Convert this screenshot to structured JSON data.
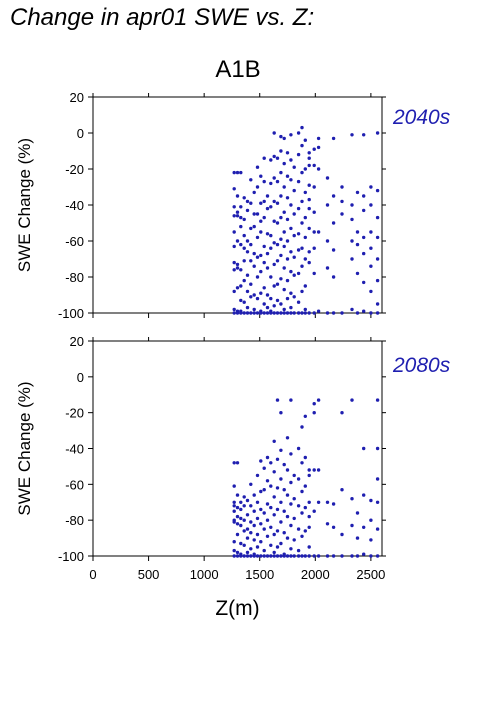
{
  "title": "Change in apr01 SWE vs. Z:",
  "scenario": "A1B",
  "colors": {
    "points": "#1f1fb0",
    "period_label": "#1f1fb0",
    "axis": "#000000"
  },
  "chart_data": [
    {
      "type": "scatter",
      "period": "2040s",
      "ylabel": "SWE Change (%)",
      "xlabel": "",
      "xlim": [
        0,
        2600
      ],
      "ylim": [
        -100,
        20
      ],
      "xticks": [
        0,
        500,
        1000,
        1500,
        2000,
        2500
      ],
      "yticks": [
        20,
        0,
        -20,
        -40,
        -60,
        -80,
        -100
      ],
      "xtick_labels_shown": false,
      "series": [
        {
          "columns": [
            {
              "x": 1270,
              "y": [
                -22,
                -31,
                -41,
                -46,
                -55,
                -63,
                -72,
                -76,
                -88,
                -98,
                -100
              ]
            },
            {
              "x": 1300,
              "y": [
                -22,
                -35,
                -44,
                -46,
                -60,
                -73,
                -75,
                -86,
                -99,
                -100
              ]
            },
            {
              "x": 1330,
              "y": [
                -22,
                -41,
                -47,
                -52,
                -62,
                -76,
                -85,
                -93,
                -99,
                -100
              ]
            },
            {
              "x": 1360,
              "y": [
                -36,
                -48,
                -57,
                -64,
                -71,
                -82,
                -94,
                -100
              ]
            },
            {
              "x": 1390,
              "y": [
                -38,
                -43,
                -60,
                -66,
                -79,
                -88,
                -97,
                -100
              ]
            },
            {
              "x": 1420,
              "y": [
                -26,
                -39,
                -53,
                -62,
                -71,
                -84,
                -91,
                -100
              ]
            },
            {
              "x": 1450,
              "y": [
                -33,
                -45,
                -52,
                -67,
                -74,
                -90,
                -98,
                -100
              ]
            },
            {
              "x": 1480,
              "y": [
                -19,
                -30,
                -45,
                -58,
                -69,
                -80,
                -92,
                -100
              ]
            },
            {
              "x": 1510,
              "y": [
                -24,
                -39,
                -49,
                -55,
                -68,
                -77,
                -89,
                -99,
                -100
              ]
            },
            {
              "x": 1540,
              "y": [
                -14,
                -27,
                -38,
                -47,
                -63,
                -72,
                -86,
                -95,
                -100
              ]
            },
            {
              "x": 1570,
              "y": [
                -35,
                -42,
                -56,
                -67,
                -75,
                -90,
                -97,
                -100
              ]
            },
            {
              "x": 1600,
              "y": [
                -15,
                -28,
                -41,
                -57,
                -64,
                -80,
                -92,
                -99,
                -100
              ]
            },
            {
              "x": 1630,
              "y": [
                0,
                -13,
                -25,
                -38,
                -49,
                -61,
                -73,
                -85,
                -96,
                -100
              ]
            },
            {
              "x": 1660,
              "y": [
                -14,
                -27,
                -39,
                -50,
                -62,
                -71,
                -84,
                -93,
                -100
              ]
            },
            {
              "x": 1690,
              "y": [
                -2,
                -10,
                -22,
                -35,
                -47,
                -59,
                -68,
                -81,
                -95,
                -100
              ]
            },
            {
              "x": 1720,
              "y": [
                -3,
                -17,
                -30,
                -44,
                -55,
                -63,
                -75,
                -87,
                -98,
                -100
              ]
            },
            {
              "x": 1750,
              "y": [
                -11,
                -24,
                -36,
                -48,
                -60,
                -70,
                -82,
                -92,
                -100
              ]
            },
            {
              "x": 1780,
              "y": [
                -1,
                -15,
                -26,
                -40,
                -53,
                -66,
                -77,
                -89,
                -97,
                -100
              ]
            },
            {
              "x": 1810,
              "y": [
                -19,
                -32,
                -45,
                -57,
                -69,
                -79,
                -91,
                -100
              ]
            },
            {
              "x": 1850,
              "y": [
                0,
                -12,
                -27,
                -42,
                -56,
                -65,
                -78,
                -94,
                -100
              ]
            },
            {
              "x": 1880,
              "y": [
                3,
                -7,
                -22,
                -38,
                -50,
                -64,
                -74,
                -88,
                -100
              ]
            },
            {
              "x": 1910,
              "y": [
                -4,
                -20,
                -33,
                -47,
                -58,
                -70,
                -85,
                -98,
                -100
              ]
            },
            {
              "x": 1945,
              "y": [
                -11,
                -14,
                -18,
                -29,
                -37,
                -42,
                -53,
                -66,
                -72,
                -100
              ]
            },
            {
              "x": 1990,
              "y": [
                -9,
                -18,
                -30,
                -44,
                -55,
                -64,
                -78,
                -100
              ]
            },
            {
              "x": 2030,
              "y": [
                -3,
                -8,
                -20,
                -55,
                -99
              ]
            },
            {
              "x": 2110,
              "y": [
                -25,
                -40,
                -60,
                -75,
                -100
              ]
            },
            {
              "x": 2165,
              "y": [
                -3,
                -35,
                -50,
                -65,
                -80,
                -100
              ]
            },
            {
              "x": 2240,
              "y": [
                -30,
                -38,
                -45,
                -100
              ]
            },
            {
              "x": 2330,
              "y": [
                -1,
                -40,
                -48,
                -60,
                -70,
                -98
              ]
            },
            {
              "x": 2380,
              "y": [
                -33,
                -55,
                -62,
                -78,
                -100
              ]
            },
            {
              "x": 2435,
              "y": [
                -1,
                -35,
                -43,
                -58,
                -67,
                -83,
                -99
              ]
            },
            {
              "x": 2500,
              "y": [
                -30,
                -40,
                -55,
                -64,
                -74,
                -88,
                -100
              ]
            },
            {
              "x": 2560,
              "y": [
                0,
                -32,
                -47,
                -58,
                -70,
                -82,
                -95,
                -100
              ]
            }
          ]
        }
      ]
    },
    {
      "type": "scatter",
      "period": "2080s",
      "ylabel": "SWE Change (%)",
      "xlabel": "Z(m)",
      "xlim": [
        0,
        2600
      ],
      "ylim": [
        -100,
        20
      ],
      "xticks": [
        0,
        500,
        1000,
        1500,
        2000,
        2500
      ],
      "yticks": [
        20,
        0,
        -20,
        -40,
        -60,
        -80,
        -100
      ],
      "xtick_labels_shown": true,
      "series": [
        {
          "columns": [
            {
              "x": 1270,
              "y": [
                -48,
                -61,
                -70,
                -72,
                -75,
                -80,
                -81,
                -92,
                -97,
                -100
              ]
            },
            {
              "x": 1300,
              "y": [
                -48,
                -66,
                -73,
                -78,
                -82,
                -88,
                -98,
                -100
              ]
            },
            {
              "x": 1330,
              "y": [
                -70,
                -74,
                -79,
                -83,
                -93,
                -99,
                -100
              ]
            },
            {
              "x": 1360,
              "y": [
                -67,
                -72,
                -80,
                -86,
                -94,
                -100
              ]
            },
            {
              "x": 1390,
              "y": [
                -69,
                -77,
                -85,
                -90,
                -98,
                -100
              ]
            },
            {
              "x": 1420,
              "y": [
                -60,
                -72,
                -81,
                -87,
                -96,
                -100
              ]
            },
            {
              "x": 1450,
              "y": [
                -66,
                -75,
                -83,
                -91,
                -99,
                -100
              ]
            },
            {
              "x": 1480,
              "y": [
                -55,
                -70,
                -79,
                -88,
                -95,
                -100
              ]
            },
            {
              "x": 1510,
              "y": [
                -47,
                -64,
                -74,
                -82,
                -92,
                -100
              ]
            },
            {
              "x": 1540,
              "y": [
                -51,
                -63,
                -76,
                -85,
                -97,
                -100
              ]
            },
            {
              "x": 1570,
              "y": [
                -45,
                -58,
                -71,
                -80,
                -89,
                -100
              ]
            },
            {
              "x": 1600,
              "y": [
                -48,
                -61,
                -73,
                -84,
                -94,
                -100
              ]
            },
            {
              "x": 1630,
              "y": [
                -36,
                -53,
                -67,
                -77,
                -88,
                -98,
                -100
              ]
            },
            {
              "x": 1660,
              "y": [
                -13,
                -46,
                -62,
                -74,
                -86,
                -95,
                -100
              ]
            },
            {
              "x": 1690,
              "y": [
                -20,
                -41,
                -57,
                -70,
                -81,
                -93,
                -100
              ]
            },
            {
              "x": 1720,
              "y": [
                -49,
                -63,
                -75,
                -87,
                -99,
                -100
              ]
            },
            {
              "x": 1750,
              "y": [
                -34,
                -52,
                -66,
                -78,
                -90,
                -100
              ]
            },
            {
              "x": 1780,
              "y": [
                -13,
                -43,
                -59,
                -71,
                -83,
                -96,
                -100
              ]
            },
            {
              "x": 1810,
              "y": [
                -55,
                -68,
                -79,
                -91,
                -100
              ]
            },
            {
              "x": 1850,
              "y": [
                -40,
                -57,
                -72,
                -85,
                -97,
                -100
              ]
            },
            {
              "x": 1880,
              "y": [
                -28,
                -48,
                -64,
                -76,
                -89,
                -100
              ]
            },
            {
              "x": 1910,
              "y": [
                -22,
                -45,
                -61,
                -73,
                -86,
                -100
              ]
            },
            {
              "x": 1945,
              "y": [
                -52,
                -55,
                -70,
                -78,
                -84,
                -95,
                -100
              ]
            },
            {
              "x": 1990,
              "y": [
                -15,
                -20,
                -52,
                -75,
                -100
              ]
            },
            {
              "x": 2030,
              "y": [
                -13,
                -52,
                -70,
                -100
              ]
            },
            {
              "x": 2110,
              "y": [
                -70,
                -82,
                -100
              ]
            },
            {
              "x": 2165,
              "y": [
                -71,
                -84,
                -100
              ]
            },
            {
              "x": 2240,
              "y": [
                -20,
                -63,
                -88,
                -100
              ]
            },
            {
              "x": 2330,
              "y": [
                -13,
                -68,
                -83,
                -100
              ]
            },
            {
              "x": 2380,
              "y": [
                -76,
                -90,
                -100
              ]
            },
            {
              "x": 2435,
              "y": [
                -40,
                -66,
                -84,
                -99
              ]
            },
            {
              "x": 2500,
              "y": [
                -69,
                -80,
                -91,
                -100
              ]
            },
            {
              "x": 2560,
              "y": [
                -13,
                -40,
                -57,
                -70,
                -85,
                -100
              ]
            }
          ]
        }
      ]
    }
  ]
}
